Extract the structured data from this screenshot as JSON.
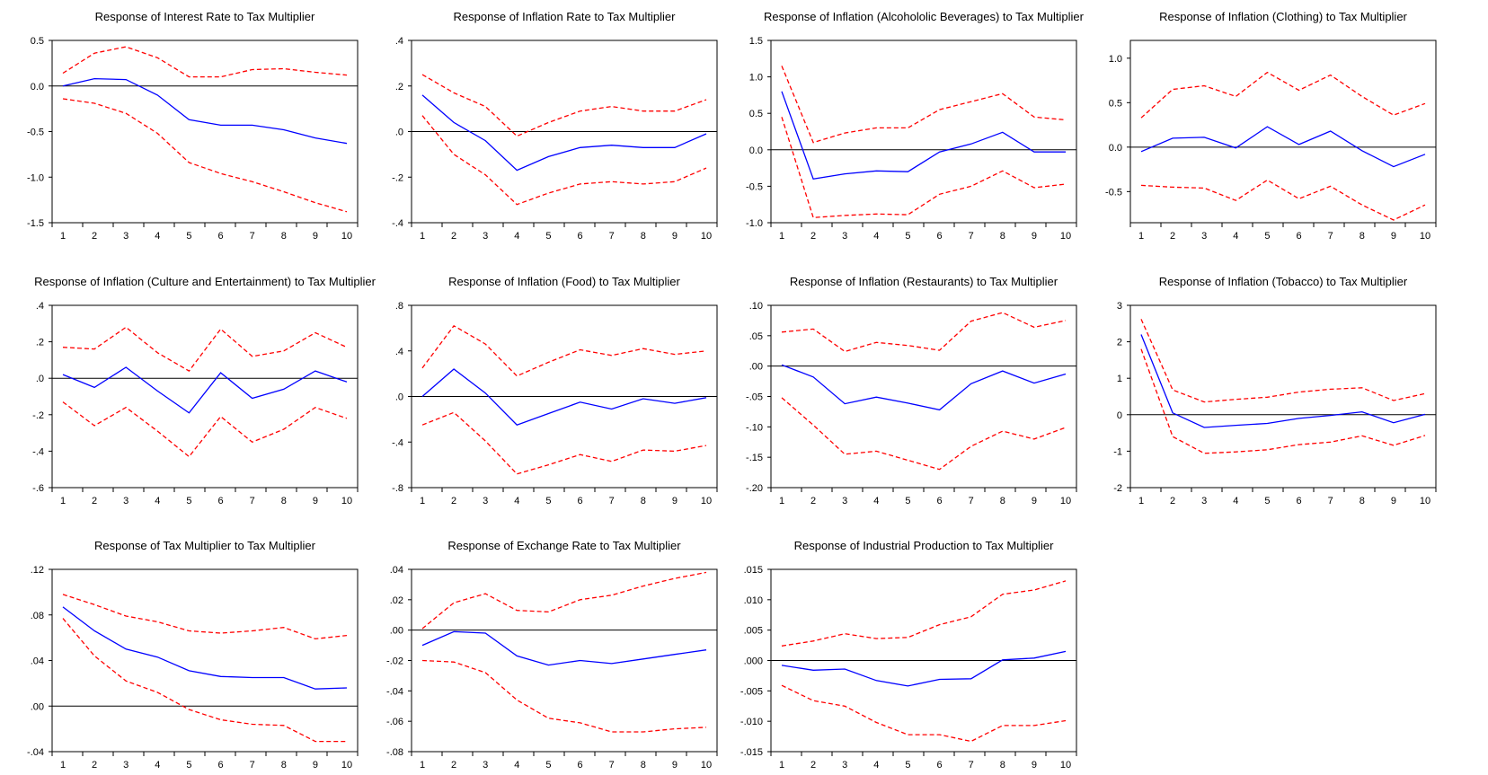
{
  "chart_data": [
    {
      "type": "line",
      "title": "Response of Interest Rate to Tax Multiplier",
      "x": [
        1,
        2,
        3,
        4,
        5,
        6,
        7,
        8,
        9,
        10
      ],
      "ylim": [
        -1.5,
        0.5
      ],
      "yticks": [
        -1.5,
        -1.0,
        -0.5,
        0.0,
        0.5
      ],
      "ytick_labels": [
        "-1.5",
        "-1.0",
        "-0.5",
        "0.0",
        "0.5"
      ],
      "series": [
        {
          "role": "response",
          "values": [
            0.0,
            0.08,
            0.07,
            -0.1,
            -0.37,
            -0.43,
            -0.43,
            -0.48,
            -0.57,
            -0.63
          ]
        },
        {
          "role": "upper",
          "values": [
            0.14,
            0.36,
            0.43,
            0.31,
            0.1,
            0.1,
            0.18,
            0.19,
            0.15,
            0.12
          ]
        },
        {
          "role": "lower",
          "values": [
            -0.14,
            -0.19,
            -0.3,
            -0.52,
            -0.84,
            -0.96,
            -1.05,
            -1.16,
            -1.28,
            -1.38
          ]
        }
      ]
    },
    {
      "type": "line",
      "title": "Response of Inflation Rate to Tax Multiplier",
      "x": [
        1,
        2,
        3,
        4,
        5,
        6,
        7,
        8,
        9,
        10
      ],
      "ylim": [
        -0.4,
        0.4
      ],
      "yticks": [
        -0.4,
        -0.2,
        0.0,
        0.2,
        0.4
      ],
      "ytick_labels": [
        "-.4",
        "-.2",
        ".0",
        ".2",
        ".4"
      ],
      "series": [
        {
          "role": "response",
          "values": [
            0.16,
            0.04,
            -0.04,
            -0.17,
            -0.11,
            -0.07,
            -0.06,
            -0.07,
            -0.07,
            -0.01
          ]
        },
        {
          "role": "upper",
          "values": [
            0.25,
            0.17,
            0.11,
            -0.02,
            0.04,
            0.09,
            0.11,
            0.09,
            0.09,
            0.14
          ]
        },
        {
          "role": "lower",
          "values": [
            0.07,
            -0.1,
            -0.19,
            -0.32,
            -0.27,
            -0.23,
            -0.22,
            -0.23,
            -0.22,
            -0.16
          ]
        }
      ]
    },
    {
      "type": "line",
      "title": "Response of Inflation (Alcohololic Beverages) to Tax Multiplier",
      "x": [
        1,
        2,
        3,
        4,
        5,
        6,
        7,
        8,
        9,
        10
      ],
      "ylim": [
        -1.0,
        1.5
      ],
      "yticks": [
        -1.0,
        -0.5,
        0.0,
        0.5,
        1.0,
        1.5
      ],
      "ytick_labels": [
        "-1.0",
        "-0.5",
        "0.0",
        "0.5",
        "1.0",
        "1.5"
      ],
      "series": [
        {
          "role": "response",
          "values": [
            0.8,
            -0.4,
            -0.33,
            -0.29,
            -0.3,
            -0.03,
            0.08,
            0.24,
            -0.03,
            -0.03
          ]
        },
        {
          "role": "upper",
          "values": [
            1.15,
            0.1,
            0.23,
            0.3,
            0.3,
            0.55,
            0.66,
            0.77,
            0.45,
            0.41
          ]
        },
        {
          "role": "lower",
          "values": [
            0.45,
            -0.93,
            -0.9,
            -0.88,
            -0.89,
            -0.61,
            -0.5,
            -0.29,
            -0.52,
            -0.47
          ]
        }
      ]
    },
    {
      "type": "line",
      "title": "Response of Inflation (Clothing) to Tax Multiplier",
      "x": [
        1,
        2,
        3,
        4,
        5,
        6,
        7,
        8,
        9,
        10
      ],
      "ylim": [
        -0.85,
        1.2
      ],
      "yticks": [
        -0.5,
        0.0,
        0.5,
        1.0
      ],
      "ytick_labels": [
        "-0.5",
        "0.0",
        "0.5",
        "1.0"
      ],
      "series": [
        {
          "role": "response",
          "values": [
            -0.05,
            0.1,
            0.11,
            -0.01,
            0.23,
            0.03,
            0.18,
            -0.04,
            -0.22,
            -0.08
          ]
        },
        {
          "role": "upper",
          "values": [
            0.33,
            0.65,
            0.69,
            0.57,
            0.84,
            0.64,
            0.81,
            0.57,
            0.36,
            0.49
          ]
        },
        {
          "role": "lower",
          "values": [
            -0.43,
            -0.45,
            -0.46,
            -0.6,
            -0.37,
            -0.58,
            -0.44,
            -0.65,
            -0.82,
            -0.65
          ]
        }
      ]
    },
    {
      "type": "line",
      "title": "Response of Inflation (Culture and Entertainment) to Tax Multiplier",
      "x": [
        1,
        2,
        3,
        4,
        5,
        6,
        7,
        8,
        9,
        10
      ],
      "ylim": [
        -0.6,
        0.4
      ],
      "yticks": [
        -0.6,
        -0.4,
        -0.2,
        0.0,
        0.2,
        0.4
      ],
      "ytick_labels": [
        "-.6",
        "-.4",
        "-.2",
        ".0",
        ".2",
        ".4"
      ],
      "series": [
        {
          "role": "response",
          "values": [
            0.02,
            -0.05,
            0.06,
            -0.07,
            -0.19,
            0.03,
            -0.11,
            -0.06,
            0.04,
            -0.02
          ]
        },
        {
          "role": "upper",
          "values": [
            0.17,
            0.16,
            0.28,
            0.14,
            0.04,
            0.27,
            0.12,
            0.15,
            0.25,
            0.17
          ]
        },
        {
          "role": "lower",
          "values": [
            -0.13,
            -0.26,
            -0.16,
            -0.29,
            -0.43,
            -0.21,
            -0.35,
            -0.28,
            -0.16,
            -0.22
          ]
        }
      ]
    },
    {
      "type": "line",
      "title": "Response of Inflation (Food) to Tax Multiplier",
      "x": [
        1,
        2,
        3,
        4,
        5,
        6,
        7,
        8,
        9,
        10
      ],
      "ylim": [
        -0.8,
        0.8
      ],
      "yticks": [
        -0.8,
        -0.4,
        0.0,
        0.4,
        0.8
      ],
      "ytick_labels": [
        "-.8",
        "-.4",
        ".0",
        ".4",
        ".8"
      ],
      "series": [
        {
          "role": "response",
          "values": [
            0.0,
            0.24,
            0.03,
            -0.25,
            -0.15,
            -0.05,
            -0.11,
            -0.02,
            -0.06,
            -0.01
          ]
        },
        {
          "role": "upper",
          "values": [
            0.25,
            0.62,
            0.46,
            0.18,
            0.3,
            0.41,
            0.36,
            0.42,
            0.37,
            0.4
          ]
        },
        {
          "role": "lower",
          "values": [
            -0.25,
            -0.14,
            -0.39,
            -0.68,
            -0.6,
            -0.51,
            -0.57,
            -0.47,
            -0.48,
            -0.43
          ]
        }
      ]
    },
    {
      "type": "line",
      "title": "Response of Inflation (Restaurants) to Tax Multiplier",
      "x": [
        1,
        2,
        3,
        4,
        5,
        6,
        7,
        8,
        9,
        10
      ],
      "ylim": [
        -0.2,
        0.1
      ],
      "yticks": [
        -0.2,
        -0.15,
        -0.1,
        -0.05,
        0.0,
        0.05,
        0.1
      ],
      "ytick_labels": [
        "-.20",
        "-.15",
        "-.10",
        "-.05",
        ".00",
        ".05",
        ".10"
      ],
      "series": [
        {
          "role": "response",
          "values": [
            0.002,
            -0.018,
            -0.062,
            -0.051,
            -0.061,
            -0.072,
            -0.029,
            -0.008,
            -0.028,
            -0.013
          ]
        },
        {
          "role": "upper",
          "values": [
            0.056,
            0.061,
            0.024,
            0.039,
            0.034,
            0.026,
            0.074,
            0.088,
            0.064,
            0.075
          ]
        },
        {
          "role": "lower",
          "values": [
            -0.052,
            -0.097,
            -0.145,
            -0.14,
            -0.155,
            -0.17,
            -0.132,
            -0.107,
            -0.12,
            -0.101
          ]
        }
      ]
    },
    {
      "type": "line",
      "title": "Response of Inflation (Tobacco) to Tax Multiplier",
      "x": [
        1,
        2,
        3,
        4,
        5,
        6,
        7,
        8,
        9,
        10
      ],
      "ylim": [
        -2,
        3
      ],
      "yticks": [
        -2,
        -1,
        0,
        1,
        2,
        3
      ],
      "ytick_labels": [
        "-2",
        "-1",
        "0",
        "1",
        "2",
        "3"
      ],
      "series": [
        {
          "role": "response",
          "values": [
            2.2,
            0.05,
            -0.35,
            -0.29,
            -0.24,
            -0.1,
            -0.02,
            0.08,
            -0.22,
            0.01
          ]
        },
        {
          "role": "upper",
          "values": [
            2.62,
            0.68,
            0.35,
            0.42,
            0.48,
            0.62,
            0.7,
            0.74,
            0.39,
            0.58
          ]
        },
        {
          "role": "lower",
          "values": [
            1.8,
            -0.6,
            -1.06,
            -1.02,
            -0.96,
            -0.82,
            -0.75,
            -0.58,
            -0.84,
            -0.57
          ]
        }
      ]
    },
    {
      "type": "line",
      "title": "Response of Tax Multiplier to Tax Multiplier",
      "x": [
        1,
        2,
        3,
        4,
        5,
        6,
        7,
        8,
        9,
        10
      ],
      "ylim": [
        -0.04,
        0.12
      ],
      "yticks": [
        -0.04,
        0.0,
        0.04,
        0.08,
        0.12
      ],
      "ytick_labels": [
        "-.04",
        ".00",
        ".04",
        ".08",
        ".12"
      ],
      "series": [
        {
          "role": "response",
          "values": [
            0.087,
            0.066,
            0.05,
            0.043,
            0.031,
            0.026,
            0.025,
            0.025,
            0.015,
            0.016
          ]
        },
        {
          "role": "upper",
          "values": [
            0.098,
            0.089,
            0.079,
            0.074,
            0.066,
            0.064,
            0.066,
            0.069,
            0.059,
            0.062
          ]
        },
        {
          "role": "lower",
          "values": [
            0.077,
            0.044,
            0.022,
            0.012,
            -0.003,
            -0.012,
            -0.016,
            -0.017,
            -0.031,
            -0.031
          ]
        }
      ]
    },
    {
      "type": "line",
      "title": "Response of Exchange Rate to Tax Multiplier",
      "x": [
        1,
        2,
        3,
        4,
        5,
        6,
        7,
        8,
        9,
        10
      ],
      "ylim": [
        -0.08,
        0.04
      ],
      "yticks": [
        -0.08,
        -0.06,
        -0.04,
        -0.02,
        0.0,
        0.02,
        0.04
      ],
      "ytick_labels": [
        "-.08",
        "-.06",
        "-.04",
        "-.02",
        ".00",
        ".02",
        ".04"
      ],
      "series": [
        {
          "role": "response",
          "values": [
            -0.01,
            -0.001,
            -0.002,
            -0.017,
            -0.023,
            -0.02,
            -0.022,
            -0.019,
            -0.016,
            -0.013
          ]
        },
        {
          "role": "upper",
          "values": [
            0.001,
            0.018,
            0.024,
            0.013,
            0.012,
            0.02,
            0.023,
            0.029,
            0.034,
            0.038
          ]
        },
        {
          "role": "lower",
          "values": [
            -0.02,
            -0.021,
            -0.028,
            -0.046,
            -0.058,
            -0.061,
            -0.067,
            -0.067,
            -0.065,
            -0.064
          ]
        }
      ]
    },
    {
      "type": "line",
      "title": "Response of Industrial Production to Tax Multiplier",
      "x": [
        1,
        2,
        3,
        4,
        5,
        6,
        7,
        8,
        9,
        10
      ],
      "ylim": [
        -0.015,
        0.015
      ],
      "yticks": [
        -0.015,
        -0.01,
        -0.005,
        0.0,
        0.005,
        0.01,
        0.015
      ],
      "ytick_labels": [
        "-.015",
        "-.010",
        "-.005",
        ".000",
        ".005",
        ".010",
        ".015"
      ],
      "series": [
        {
          "role": "response",
          "values": [
            -0.0008,
            -0.0016,
            -0.0014,
            -0.0033,
            -0.0042,
            -0.0031,
            -0.003,
            0.0001,
            0.0004,
            0.0015
          ]
        },
        {
          "role": "upper",
          "values": [
            0.0024,
            0.0032,
            0.0044,
            0.0036,
            0.0038,
            0.0059,
            0.0072,
            0.0109,
            0.0116,
            0.0131
          ]
        },
        {
          "role": "lower",
          "values": [
            -0.0041,
            -0.0066,
            -0.0075,
            -0.0102,
            -0.0122,
            -0.0122,
            -0.0133,
            -0.0107,
            -0.0107,
            -0.0099
          ]
        }
      ]
    }
  ]
}
